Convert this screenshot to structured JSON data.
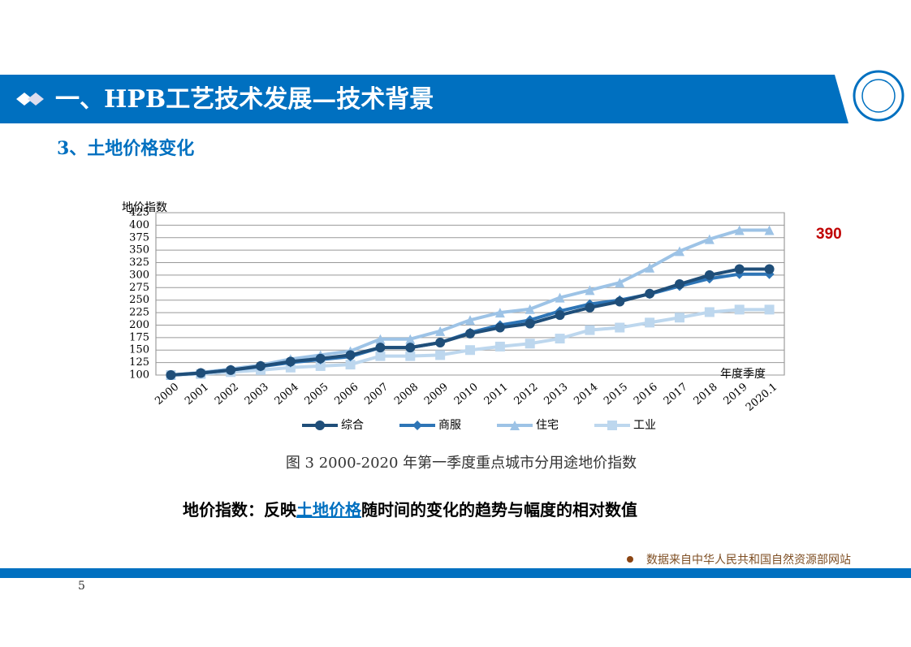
{
  "header": {
    "title": "一、HPB工艺技术发展—技术背景",
    "section": "3、土地价格变化"
  },
  "chart_data": {
    "type": "line",
    "y_label": "地价指数",
    "x_label": "年度季度",
    "categories": [
      "2000",
      "2001",
      "2002",
      "2003",
      "2004",
      "2005",
      "2006",
      "2007",
      "2008",
      "2009",
      "2010",
      "2011",
      "2012",
      "2013",
      "2014",
      "2015",
      "2016",
      "2017",
      "2018",
      "2019",
      "2020.1"
    ],
    "series": [
      {
        "name": "综合",
        "color": "#1f4e79",
        "marker": "circle",
        "values": [
          100,
          104,
          110,
          118,
          127,
          133,
          140,
          155,
          155,
          165,
          183,
          195,
          203,
          220,
          235,
          247,
          263,
          282,
          300,
          312,
          312
        ]
      },
      {
        "name": "商服",
        "color": "#2e75b6",
        "marker": "diamond",
        "values": [
          100,
          104,
          110,
          117,
          125,
          131,
          137,
          155,
          155,
          165,
          185,
          200,
          210,
          228,
          242,
          250,
          262,
          278,
          293,
          302,
          302
        ]
      },
      {
        "name": "住宅",
        "color": "#9dc3e6",
        "marker": "triangle",
        "values": [
          100,
          105,
          112,
          120,
          132,
          140,
          148,
          172,
          172,
          188,
          210,
          225,
          232,
          255,
          270,
          285,
          315,
          348,
          372,
          390,
          390
        ]
      },
      {
        "name": "工业",
        "color": "#bdd7ee",
        "marker": "square",
        "values": [
          100,
          102,
          106,
          110,
          115,
          118,
          121,
          138,
          138,
          140,
          150,
          157,
          163,
          173,
          190,
          195,
          205,
          215,
          226,
          231,
          231
        ]
      }
    ],
    "ylim": [
      100,
      425
    ],
    "yticks": [
      100,
      125,
      150,
      175,
      200,
      225,
      250,
      275,
      300,
      325,
      350,
      375,
      400,
      425
    ],
    "grid": true,
    "caption": "图 3 2000-2020 年第一季度重点城市分用途地价指数"
  },
  "annotation": "390",
  "description": {
    "prefix": "地价指数：反映",
    "link": "土地价格",
    "suffix": "随时间的变化的趋势与幅度的相对数值"
  },
  "source": "数据来自中华人民共和国自然资源部网站",
  "page_number": "5"
}
